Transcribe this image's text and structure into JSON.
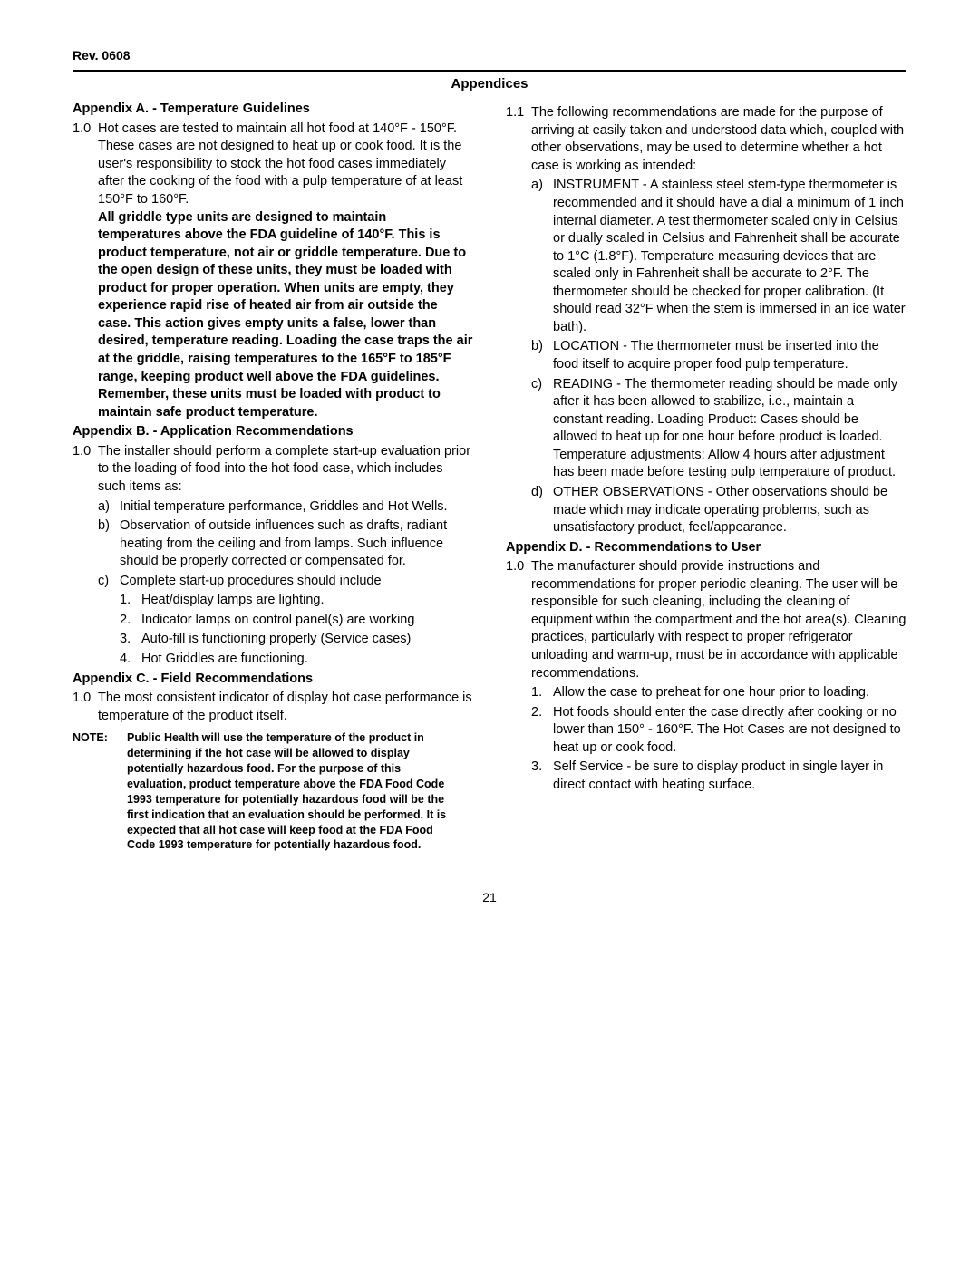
{
  "rev": "Rev. 0608",
  "title": "Appendices",
  "appA": {
    "heading": "Appendix A. - Temperature Guidelines",
    "item1_num": "1.0",
    "item1_intro": "Hot cases are tested to maintain all hot food at 140°F - 150°F. These cases are not designed to heat up or cook food. It is the user's responsibility to stock the hot food cases immediately after the cooking of the food with a pulp temperature of at least 150°F to 160°F.",
    "item1_bold": "All griddle type units are designed to maintain temperatures above the FDA guideline of 140°F. This is product temperature, not air or griddle temperature. Due to the open design of these units, they must be loaded with product for proper operation. When units are empty, they experience rapid rise of heated air from air outside the case. This action gives empty units a false, lower than desired, temperature reading. Loading the case traps the air at the griddle, raising temperatures to the 165°F to 185°F range, keeping product well above the FDA guidelines. Remember, these units must be loaded with product to maintain safe product temperature."
  },
  "appB": {
    "heading": "Appendix B. - Application Recommendations",
    "item1_num": "1.0",
    "item1": "The installer should perform a complete start-up evaluation prior to the loading of food into the hot food case, which includes such items as:",
    "a_l": "a)",
    "a": "Initial temperature performance, Griddles and Hot Wells.",
    "b_l": "b)",
    "b": "Observation of outside influences such as drafts, radiant heating from the ceiling and from lamps. Such influence should be properly corrected or compensated for.",
    "c_l": "c)",
    "c": "Complete start-up procedures should include",
    "c1_l": "1.",
    "c1": "Heat/display lamps are lighting.",
    "c2_l": "2.",
    "c2": "Indicator lamps on control panel(s) are working",
    "c3_l": "3.",
    "c3": "Auto-fill is functioning properly (Service cases)",
    "c4_l": "4.",
    "c4": "Hot Griddles are functioning."
  },
  "appC": {
    "heading": "Appendix C. - Field Recommendations",
    "item1_num": "1.0",
    "item1": "The most consistent indicator of display hot case performance is temperature of the product itself.",
    "note_label": "NOTE:",
    "note": "Public Health will use the temperature of the product in determining if the hot case will be allowed to display potentially hazardous food. For the purpose of this evaluation, product temperature above the FDA Food Code 1993 temperature for potentially hazardous food will be the first indication that an evaluation should be performed. It is expected that all hot case will keep food at the FDA Food Code 1993 temperature for potentially hazardous food.",
    "item11_num": "1.1",
    "item11": "The following recommendations are made for the purpose of arriving at easily taken and understood data which, coupled with other observations, may be used to determine whether a hot case is working as intended:",
    "a_l": "a)",
    "a": "INSTRUMENT - A stainless steel stem-type thermometer is recommended and it should have a dial a minimum of 1 inch internal diameter. A test thermometer scaled only in Celsius or dually scaled in Celsius and Fahrenheit shall be accurate to 1°C (1.8°F). Temperature measuring devices that are scaled only in Fahrenheit shall be accurate to 2°F. The thermometer should be checked for proper calibration. (It should read 32°F when the stem is immersed in an ice water bath).",
    "b_l": "b)",
    "b": "LOCATION - The thermometer must be inserted into the food itself to acquire proper food pulp temperature.",
    "c_l": "c)",
    "c": "READING - The thermometer reading should be made only after it has been allowed to stabilize, i.e., maintain a constant reading. Loading Product: Cases should be allowed to heat up for one hour before product is loaded.",
    "c_extra": "Temperature adjustments: Allow 4 hours after adjustment has been made before testing pulp temperature of product.",
    "d_l": "d)",
    "d": "OTHER OBSERVATIONS - Other observations should be made which may indicate operating problems, such as unsatisfactory product, feel/appearance."
  },
  "appD": {
    "heading": "Appendix D. - Recommendations to User",
    "item1_num": "1.0",
    "item1": "The manufacturer should provide instructions and recommendations for proper periodic cleaning. The user will be responsible for such cleaning, including the cleaning of equipment within the compartment and the hot area(s). Cleaning practices, particularly with respect to proper refrigerator unloading and warm-up, must be in accordance with applicable recommendations.",
    "d1_l": "1.",
    "d1": "Allow the case to preheat for one hour prior to loading.",
    "d2_l": "2.",
    "d2": "Hot foods should enter the case directly after cooking or no lower than 150° - 160°F. The Hot Cases are not designed to heat up or cook food.",
    "d3_l": "3.",
    "d3": "Self Service - be sure to display product in single layer in direct contact with heating surface."
  },
  "pagenum": "21"
}
